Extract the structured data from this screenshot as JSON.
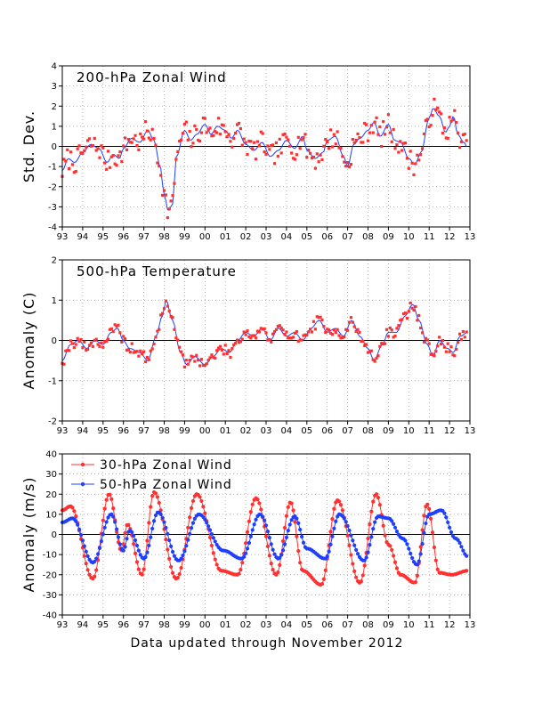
{
  "footer": "Data updated through November 2012",
  "colors": {
    "red": "#ff3030",
    "blue": "#1f3fff",
    "black": "#000000",
    "grid": "#999999"
  },
  "x_tick_labels": [
    "93",
    "94",
    "95",
    "96",
    "97",
    "98",
    "99",
    "00",
    "01",
    "02",
    "03",
    "04",
    "05",
    "06",
    "07",
    "08",
    "09",
    "10",
    "11",
    "12",
    "13"
  ],
  "chart_data": [
    {
      "type": "line",
      "title": "200-hPa Zonal Wind",
      "ylabel": "Std. Dev.",
      "xlim": [
        1993,
        2013
      ],
      "ylim": [
        -4,
        4
      ],
      "yticks": [
        -4,
        -3,
        -2,
        -1,
        0,
        1,
        2,
        3,
        4
      ],
      "grid": true,
      "series": [
        {
          "role": "monthly",
          "style": "red-dots",
          "x": [],
          "y": []
        },
        {
          "role": "smoothed",
          "style": "blue-line",
          "x": [],
          "y": []
        }
      ],
      "knots": [
        [
          1993.0,
          -1.2
        ],
        [
          1993.3,
          -0.6
        ],
        [
          1993.6,
          -0.8
        ],
        [
          1994.0,
          -0.3
        ],
        [
          1994.4,
          0.1
        ],
        [
          1994.8,
          -0.1
        ],
        [
          1995.2,
          -0.8
        ],
        [
          1995.5,
          -0.4
        ],
        [
          1995.8,
          -0.6
        ],
        [
          1996.0,
          -0.1
        ],
        [
          1996.4,
          0.4
        ],
        [
          1996.8,
          0.2
        ],
        [
          1997.2,
          0.8
        ],
        [
          1997.5,
          0.3
        ],
        [
          1997.8,
          -1.0
        ],
        [
          1998.0,
          -2.4
        ],
        [
          1998.2,
          -3.2
        ],
        [
          1998.4,
          -2.9
        ],
        [
          1998.6,
          -0.5
        ],
        [
          1999.0,
          0.8
        ],
        [
          1999.3,
          0.3
        ],
        [
          1999.6,
          0.6
        ],
        [
          2000.0,
          1.1
        ],
        [
          2000.3,
          0.6
        ],
        [
          2000.6,
          1.0
        ],
        [
          2001.0,
          0.8
        ],
        [
          2001.3,
          0.4
        ],
        [
          2001.6,
          0.8
        ],
        [
          2002.0,
          0.1
        ],
        [
          2002.4,
          -0.2
        ],
        [
          2002.8,
          0.2
        ],
        [
          2003.2,
          -0.5
        ],
        [
          2003.6,
          -0.2
        ],
        [
          2004.0,
          0.3
        ],
        [
          2004.4,
          -0.1
        ],
        [
          2004.8,
          0.5
        ],
        [
          2005.0,
          -0.2
        ],
        [
          2005.4,
          -0.6
        ],
        [
          2005.8,
          -0.3
        ],
        [
          2006.0,
          0.3
        ],
        [
          2006.4,
          0.5
        ],
        [
          2006.8,
          -0.5
        ],
        [
          2007.0,
          -1.0
        ],
        [
          2007.3,
          0.1
        ],
        [
          2007.6,
          0.4
        ],
        [
          2008.0,
          0.8
        ],
        [
          2008.3,
          1.2
        ],
        [
          2008.6,
          0.5
        ],
        [
          2009.0,
          1.1
        ],
        [
          2009.3,
          0.3
        ],
        [
          2009.6,
          0.2
        ],
        [
          2010.0,
          -0.6
        ],
        [
          2010.3,
          -0.9
        ],
        [
          2010.6,
          -0.3
        ],
        [
          2011.0,
          1.4
        ],
        [
          2011.2,
          1.9
        ],
        [
          2011.5,
          1.5
        ],
        [
          2011.8,
          0.7
        ],
        [
          2012.0,
          1.0
        ],
        [
          2012.2,
          1.5
        ],
        [
          2012.4,
          0.6
        ],
        [
          2012.7,
          0.2
        ],
        [
          2012.9,
          -0.1
        ]
      ],
      "noise": 0.55,
      "seed": 7
    },
    {
      "type": "line",
      "title": "500-hPa Temperature",
      "ylabel": "Anomaly (C)",
      "xlim": [
        1993,
        2013
      ],
      "ylim": [
        -2,
        2
      ],
      "yticks": [
        -2,
        -1,
        0,
        1,
        2
      ],
      "grid": true,
      "series": [
        {
          "role": "monthly",
          "style": "red-dots",
          "x": [],
          "y": []
        },
        {
          "role": "smoothed",
          "style": "blue-line",
          "x": [],
          "y": []
        }
      ],
      "knots": [
        [
          1993.0,
          -0.5
        ],
        [
          1993.4,
          -0.1
        ],
        [
          1993.8,
          0.0
        ],
        [
          1994.2,
          -0.2
        ],
        [
          1994.6,
          0.0
        ],
        [
          1995.0,
          -0.1
        ],
        [
          1995.4,
          0.2
        ],
        [
          1995.7,
          0.3
        ],
        [
          1996.0,
          0.0
        ],
        [
          1996.3,
          -0.2
        ],
        [
          1996.8,
          -0.3
        ],
        [
          1997.2,
          -0.5
        ],
        [
          1997.6,
          0.1
        ],
        [
          1997.9,
          0.6
        ],
        [
          1998.1,
          1.0
        ],
        [
          1998.4,
          0.5
        ],
        [
          1998.8,
          -0.3
        ],
        [
          1999.1,
          -0.6
        ],
        [
          1999.5,
          -0.4
        ],
        [
          2000.0,
          -0.6
        ],
        [
          2000.4,
          -0.4
        ],
        [
          2000.8,
          -0.2
        ],
        [
          2001.2,
          -0.3
        ],
        [
          2001.6,
          0.0
        ],
        [
          2002.0,
          0.2
        ],
        [
          2002.4,
          0.1
        ],
        [
          2002.8,
          0.3
        ],
        [
          2003.2,
          0.0
        ],
        [
          2003.6,
          0.3
        ],
        [
          2004.0,
          0.1
        ],
        [
          2004.4,
          0.2
        ],
        [
          2004.8,
          0.0
        ],
        [
          2005.2,
          0.3
        ],
        [
          2005.6,
          0.5
        ],
        [
          2006.0,
          0.2
        ],
        [
          2006.4,
          0.3
        ],
        [
          2006.8,
          0.1
        ],
        [
          2007.2,
          0.5
        ],
        [
          2007.6,
          0.1
        ],
        [
          2008.0,
          -0.2
        ],
        [
          2008.3,
          -0.5
        ],
        [
          2008.7,
          -0.1
        ],
        [
          2009.0,
          0.2
        ],
        [
          2009.4,
          0.2
        ],
        [
          2009.8,
          0.6
        ],
        [
          2010.2,
          0.9
        ],
        [
          2010.5,
          0.5
        ],
        [
          2010.9,
          -0.1
        ],
        [
          2011.2,
          -0.4
        ],
        [
          2011.5,
          0.0
        ],
        [
          2011.9,
          -0.2
        ],
        [
          2012.2,
          -0.3
        ],
        [
          2012.5,
          0.1
        ],
        [
          2012.9,
          0.2
        ]
      ],
      "noise": 0.13,
      "seed": 19
    },
    {
      "type": "line",
      "ylabel": "Anomaly (m/s)",
      "xlim": [
        1993,
        2013
      ],
      "ylim": [
        -40,
        40
      ],
      "yticks": [
        -40,
        -30,
        -20,
        -10,
        0,
        10,
        20,
        30,
        40
      ],
      "grid": true,
      "legend": "top-left",
      "series": [
        {
          "name": "30-hPa Zonal Wind",
          "role": "qbo30",
          "style": "red-dots-line",
          "x": [],
          "y": []
        },
        {
          "name": "50-hPa Zonal Wind",
          "role": "qbo50",
          "style": "blue-dots-line",
          "x": [],
          "y": []
        }
      ],
      "peaks30": [
        [
          1993.0,
          12
        ],
        [
          1993.4,
          14
        ],
        [
          1994.5,
          -22
        ],
        [
          1995.3,
          20
        ],
        [
          1995.9,
          -8
        ],
        [
          1996.2,
          5
        ],
        [
          1996.9,
          -20
        ],
        [
          1997.5,
          21
        ],
        [
          1998.6,
          -22
        ],
        [
          1999.6,
          20
        ],
        [
          2000.8,
          -18
        ],
        [
          2001.6,
          -20
        ],
        [
          2002.5,
          18
        ],
        [
          2003.5,
          -20
        ],
        [
          2004.2,
          16
        ],
        [
          2004.8,
          -18
        ],
        [
          2005.7,
          -25
        ],
        [
          2006.5,
          17
        ],
        [
          2007.6,
          -24
        ],
        [
          2008.4,
          20
        ],
        [
          2009.0,
          -5
        ],
        [
          2009.6,
          -20
        ],
        [
          2010.3,
          -24
        ],
        [
          2010.9,
          15
        ],
        [
          2011.5,
          -19
        ],
        [
          2012.1,
          -20
        ],
        [
          2012.9,
          -18
        ]
      ],
      "peaks50": [
        [
          1993.0,
          6
        ],
        [
          1993.5,
          8
        ],
        [
          1994.5,
          -14
        ],
        [
          1995.4,
          10
        ],
        [
          1996.0,
          -8
        ],
        [
          1996.3,
          2
        ],
        [
          1997.0,
          -12
        ],
        [
          1997.7,
          11
        ],
        [
          1998.7,
          -13
        ],
        [
          1999.7,
          10
        ],
        [
          2000.9,
          -8
        ],
        [
          2001.8,
          -12
        ],
        [
          2002.7,
          10
        ],
        [
          2003.6,
          -12
        ],
        [
          2004.4,
          9
        ],
        [
          2005.0,
          -7
        ],
        [
          2005.9,
          -12
        ],
        [
          2006.6,
          10
        ],
        [
          2007.8,
          -13
        ],
        [
          2008.5,
          9
        ],
        [
          2009.0,
          8
        ],
        [
          2009.7,
          -2
        ],
        [
          2010.4,
          -15
        ],
        [
          2011.0,
          10
        ],
        [
          2011.6,
          12
        ],
        [
          2012.3,
          -2
        ],
        [
          2012.9,
          -11
        ]
      ]
    }
  ]
}
